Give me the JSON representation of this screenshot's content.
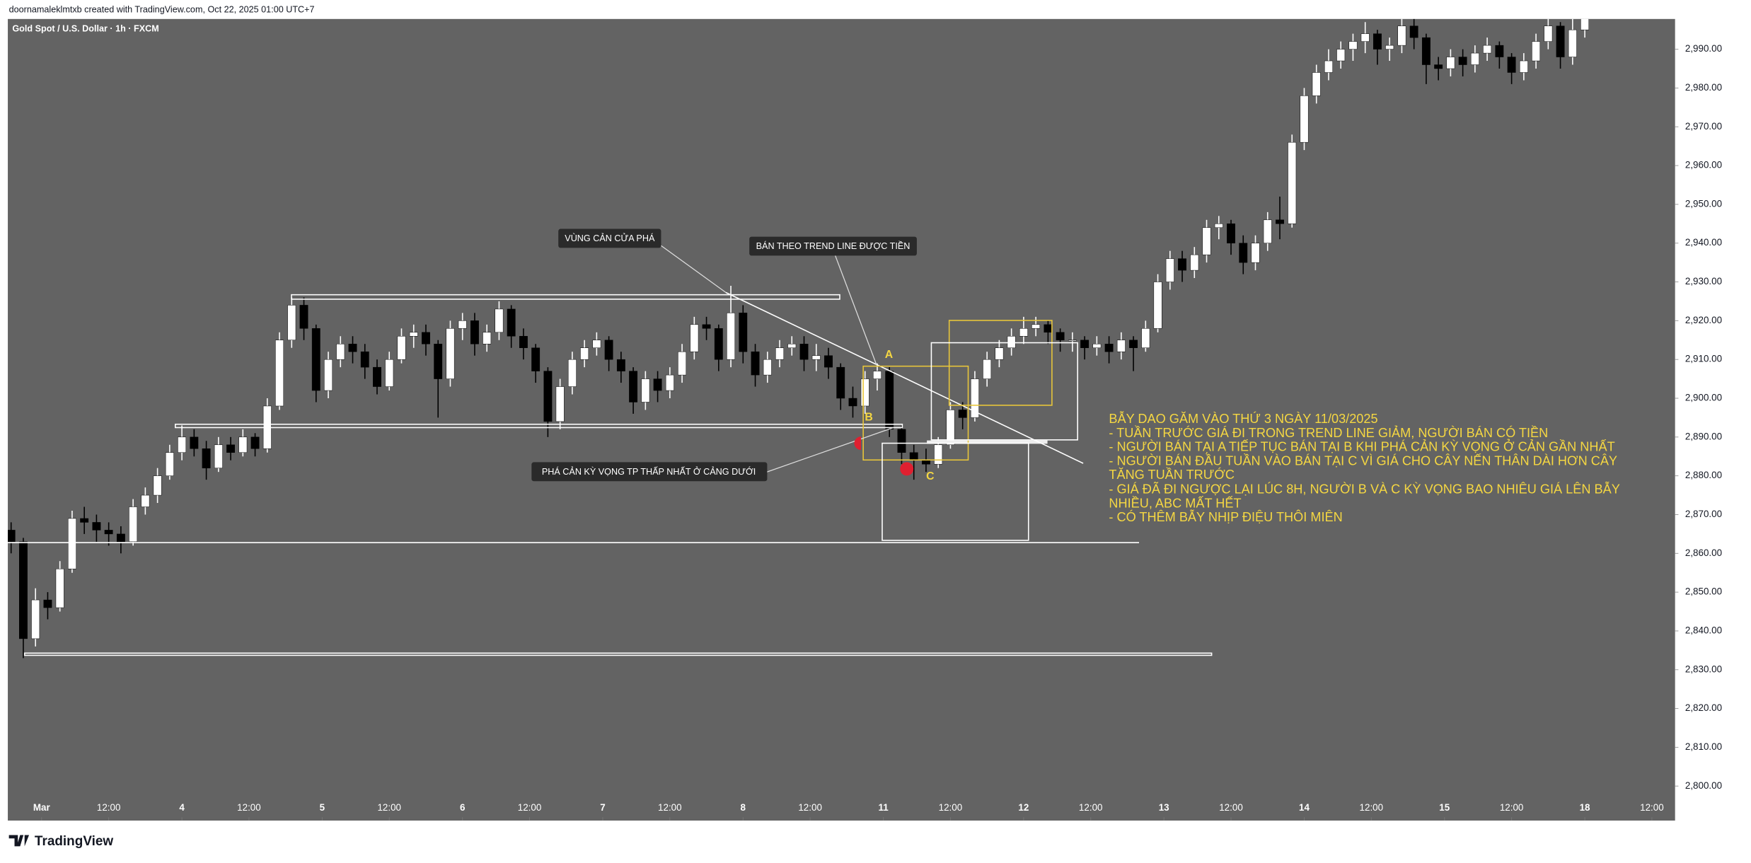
{
  "chart_data": {
    "type": "candlestick",
    "header": "doornamaleklmtxb created with TradingView.com, Oct 22, 2025 01:00 UTC+7",
    "title": "Gold Spot / U.S. Dollar · 1h · FXCM",
    "brand": "TradingView",
    "up_color": "#ffffff",
    "down_color": "#000000",
    "grid": false,
    "ylim": [
      2791.1,
      2997.8
    ],
    "yticks": [
      {
        "value": 2800,
        "label": "2,800.00"
      },
      {
        "value": 2810,
        "label": "2,810.00"
      },
      {
        "value": 2820,
        "label": "2,820.00"
      },
      {
        "value": 2830,
        "label": "2,830.00"
      },
      {
        "value": 2840,
        "label": "2,840.00"
      },
      {
        "value": 2850,
        "label": "2,850.00"
      },
      {
        "value": 2860,
        "label": "2,860.00"
      },
      {
        "value": 2870,
        "label": "2,870.00"
      },
      {
        "value": 2880,
        "label": "2,880.00"
      },
      {
        "value": 2890,
        "label": "2,890.00"
      },
      {
        "value": 2900,
        "label": "2,900.00"
      },
      {
        "value": 2910,
        "label": "2,910.00"
      },
      {
        "value": 2920,
        "label": "2,920.00"
      },
      {
        "value": 2930,
        "label": "2,930.00"
      },
      {
        "value": 2940,
        "label": "2,940.00"
      },
      {
        "value": 2950,
        "label": "2,950.00"
      },
      {
        "value": 2960,
        "label": "2,960.00"
      },
      {
        "value": 2970,
        "label": "2,970.00"
      },
      {
        "value": 2980,
        "label": "2,980.00"
      },
      {
        "value": 2990,
        "label": "2,990.00"
      }
    ],
    "xlim": [
      -0.27,
      136.4
    ],
    "xticks": [
      {
        "value": 2.5,
        "label": "Mar"
      },
      {
        "value": 8,
        "label": "12:00"
      },
      {
        "value": 14,
        "label": "4"
      },
      {
        "value": 19.5,
        "label": "12:00"
      },
      {
        "value": 25.5,
        "label": "5"
      },
      {
        "value": 31,
        "label": "12:00"
      },
      {
        "value": 37,
        "label": "6"
      },
      {
        "value": 42.5,
        "label": "12:00"
      },
      {
        "value": 48.5,
        "label": "7"
      },
      {
        "value": 54,
        "label": "12:00"
      },
      {
        "value": 60,
        "label": "8"
      },
      {
        "value": 65.5,
        "label": "12:00"
      },
      {
        "value": 71.5,
        "label": "11"
      },
      {
        "value": 77,
        "label": "12:00"
      },
      {
        "value": 83,
        "label": "12"
      },
      {
        "value": 88.5,
        "label": "12:00"
      },
      {
        "value": 94.5,
        "label": "13"
      },
      {
        "value": 100,
        "label": "12:00"
      },
      {
        "value": 106,
        "label": "14"
      },
      {
        "value": 111.5,
        "label": "12:00"
      },
      {
        "value": 117.5,
        "label": "15"
      },
      {
        "value": 123,
        "label": "12:00"
      },
      {
        "value": 129,
        "label": "18"
      },
      {
        "value": 134.5,
        "label": "12:00"
      }
    ],
    "candles": [
      [
        2866,
        2868,
        2860,
        2863
      ],
      [
        2863,
        2864,
        2833,
        2838
      ],
      [
        2838,
        2851,
        2836,
        2848
      ],
      [
        2848,
        2850,
        2843,
        2846
      ],
      [
        2846,
        2858,
        2845,
        2856
      ],
      [
        2856,
        2871,
        2855,
        2869
      ],
      [
        2869,
        2872,
        2865,
        2868
      ],
      [
        2868,
        2870,
        2863,
        2866
      ],
      [
        2866,
        2868,
        2862,
        2865
      ],
      [
        2865,
        2867,
        2860,
        2863
      ],
      [
        2863,
        2874,
        2862,
        2872
      ],
      [
        2872,
        2877,
        2870,
        2875
      ],
      [
        2875,
        2882,
        2873,
        2880
      ],
      [
        2880,
        2888,
        2879,
        2886
      ],
      [
        2886,
        2893,
        2884,
        2890
      ],
      [
        2890,
        2892,
        2885,
        2887
      ],
      [
        2887,
        2889,
        2879,
        2882
      ],
      [
        2882,
        2890,
        2881,
        2888
      ],
      [
        2888,
        2890,
        2884,
        2886
      ],
      [
        2886,
        2892,
        2885,
        2890
      ],
      [
        2890,
        2891,
        2885,
        2887
      ],
      [
        2887,
        2900,
        2886,
        2898
      ],
      [
        2898,
        2917,
        2897,
        2915
      ],
      [
        2915,
        2926,
        2913,
        2924
      ],
      [
        2924,
        2926,
        2915,
        2918
      ],
      [
        2918,
        2919,
        2899,
        2902
      ],
      [
        2902,
        2912,
        2900,
        2910
      ],
      [
        2910,
        2916,
        2908,
        2914
      ],
      [
        2914,
        2916,
        2909,
        2912
      ],
      [
        2912,
        2914,
        2905,
        2908
      ],
      [
        2908,
        2910,
        2901,
        2903
      ],
      [
        2903,
        2912,
        2902,
        2910
      ],
      [
        2910,
        2918,
        2909,
        2916
      ],
      [
        2916,
        2919,
        2913,
        2917
      ],
      [
        2917,
        2919,
        2911,
        2914
      ],
      [
        2914,
        2915,
        2895,
        2905
      ],
      [
        2905,
        2920,
        2903,
        2918
      ],
      [
        2918,
        2922,
        2915,
        2920
      ],
      [
        2920,
        2922,
        2911,
        2914
      ],
      [
        2914,
        2919,
        2912,
        2917
      ],
      [
        2917,
        2925,
        2915,
        2923
      ],
      [
        2923,
        2924,
        2913,
        2916
      ],
      [
        2916,
        2918,
        2910,
        2913
      ],
      [
        2913,
        2914,
        2904,
        2907
      ],
      [
        2907,
        2908,
        2890,
        2894
      ],
      [
        2894,
        2905,
        2892,
        2903
      ],
      [
        2903,
        2912,
        2901,
        2910
      ],
      [
        2910,
        2915,
        2908,
        2913
      ],
      [
        2913,
        2917,
        2911,
        2915
      ],
      [
        2915,
        2916,
        2907,
        2910
      ],
      [
        2910,
        2912,
        2904,
        2907
      ],
      [
        2907,
        2908,
        2896,
        2899
      ],
      [
        2899,
        2907,
        2897,
        2905
      ],
      [
        2905,
        2907,
        2899,
        2902
      ],
      [
        2902,
        2908,
        2900,
        2906
      ],
      [
        2906,
        2914,
        2904,
        2912
      ],
      [
        2912,
        2921,
        2910,
        2919
      ],
      [
        2919,
        2921,
        2915,
        2918
      ],
      [
        2918,
        2919,
        2907,
        2910
      ],
      [
        2910,
        2929,
        2908,
        2922
      ],
      [
        2922,
        2924,
        2909,
        2912
      ],
      [
        2912,
        2914,
        2903,
        2906
      ],
      [
        2906,
        2912,
        2904,
        2910
      ],
      [
        2910,
        2915,
        2908,
        2913
      ],
      [
        2913,
        2916,
        2911,
        2914
      ],
      [
        2914,
        2916,
        2907,
        2910
      ],
      [
        2910,
        2914,
        2907,
        2911
      ],
      [
        2911,
        2913,
        2905,
        2908
      ],
      [
        2908,
        2909,
        2897,
        2900
      ],
      [
        2900,
        2903,
        2895,
        2898
      ],
      [
        2898,
        2907,
        2896,
        2905
      ],
      [
        2905,
        2909,
        2902,
        2907
      ],
      [
        2907,
        2908,
        2890,
        2892
      ],
      [
        2892,
        2893,
        2883,
        2886
      ],
      [
        2886,
        2888,
        2879,
        2884
      ],
      [
        2884,
        2887,
        2881,
        2883
      ],
      [
        2883,
        2890,
        2882,
        2888
      ],
      [
        2888,
        2899,
        2887,
        2897
      ],
      [
        2897,
        2899,
        2892,
        2895
      ],
      [
        2895,
        2907,
        2894,
        2905
      ],
      [
        2905,
        2912,
        2903,
        2910
      ],
      [
        2910,
        2915,
        2908,
        2913
      ],
      [
        2913,
        2918,
        2911,
        2916
      ],
      [
        2916,
        2921,
        2914,
        2918
      ],
      [
        2918,
        2921,
        2916,
        2919
      ],
      [
        2919,
        2920,
        2914,
        2917
      ],
      [
        2917,
        2918,
        2912,
        2915
      ],
      [
        2915,
        2917,
        2912,
        2915
      ],
      [
        2915,
        2916,
        2910,
        2913
      ],
      [
        2913,
        2916,
        2911,
        2914
      ],
      [
        2914,
        2916,
        2909,
        2912
      ],
      [
        2912,
        2917,
        2910,
        2915
      ],
      [
        2915,
        2916,
        2907,
        2913
      ],
      [
        2913,
        2920,
        2912,
        2918
      ],
      [
        2918,
        2932,
        2917,
        2930
      ],
      [
        2930,
        2938,
        2928,
        2936
      ],
      [
        2936,
        2938,
        2930,
        2933
      ],
      [
        2933,
        2939,
        2931,
        2937
      ],
      [
        2937,
        2946,
        2935,
        2944
      ],
      [
        2944,
        2947,
        2941,
        2945
      ],
      [
        2945,
        2946,
        2937,
        2940
      ],
      [
        2940,
        2942,
        2932,
        2935
      ],
      [
        2935,
        2942,
        2933,
        2940
      ],
      [
        2940,
        2948,
        2938,
        2946
      ],
      [
        2946,
        2952,
        2941,
        2945
      ],
      [
        2945,
        2968,
        2944,
        2966
      ],
      [
        2966,
        2980,
        2964,
        2978
      ],
      [
        2978,
        2986,
        2976,
        2984
      ],
      [
        2984,
        2990,
        2982,
        2987
      ],
      [
        2987,
        2992,
        2985,
        2990
      ],
      [
        2990,
        2994,
        2987,
        2992
      ],
      [
        2992,
        2997,
        2989,
        2994
      ],
      [
        2994,
        2995,
        2986,
        2990
      ],
      [
        2990,
        2993,
        2987,
        2991
      ],
      [
        2991,
        2999,
        2989,
        2996
      ],
      [
        2996,
        2999,
        2990,
        2993
      ],
      [
        2993,
        2994,
        2981,
        2986
      ],
      [
        2986,
        2988,
        2982,
        2985
      ],
      [
        2985,
        2990,
        2983,
        2988
      ],
      [
        2988,
        2990,
        2983,
        2986
      ],
      [
        2986,
        2991,
        2984,
        2989
      ],
      [
        2989,
        2993,
        2987,
        2991
      ],
      [
        2991,
        2992,
        2985,
        2988
      ],
      [
        2988,
        2989,
        2981,
        2984
      ],
      [
        2984,
        2989,
        2982,
        2987
      ],
      [
        2987,
        2994,
        2985,
        2992
      ],
      [
        2992,
        2999,
        2990,
        2996
      ],
      [
        2996,
        2997,
        2985,
        2988
      ],
      [
        2988,
        2998,
        2986,
        2995
      ],
      [
        2995,
        3001,
        2993,
        2998
      ]
    ],
    "callouts": [
      "VÙNG CẢN CỬA PHÁ",
      "BÁN THEO TREND LINE ĐƯỢC TIỀN",
      "PHÁ CẢN KỲ VỌNG TP THẤP NHẤT Ở CẢNG DƯỚI"
    ],
    "letters": [
      "A",
      "B",
      "C"
    ],
    "note": [
      "BẪY DAO GĂM VÀO THỨ 3 NGÀY 11/03/2025",
      "- TUẦN TRƯỚC GIÁ ĐI TRONG TREND LINE GIẢM, NGƯỜI BÁN CÓ TIỀN",
      "- NGƯỜI BÁN TẠI A TIẾP TỤC BÁN TẠI B KHI PHÁ CẢN KỲ VỌNG Ở CẢN GẦN NHẤT",
      "- NGƯỜI BÁN ĐẦU TUẦN VÀO BÁN TẠI C VÌ GIÁ CHO CÂY NẾN THÂN DÀI HƠN CÂY",
      "TĂNG TUẦN TRƯỚC",
      "- GIÁ ĐÃ ĐI NGƯỢC LẠI LÚC 8H, NGƯỜI B VÀ C KỲ VỌNG BAO NHIÊU GIÁ LÊN BẪY",
      "NHIỀU, ABC MẤT HẾT",
      "- CÓ THÊM BẪY NHỊP ĐIỆU THÔI MIÊN"
    ]
  }
}
